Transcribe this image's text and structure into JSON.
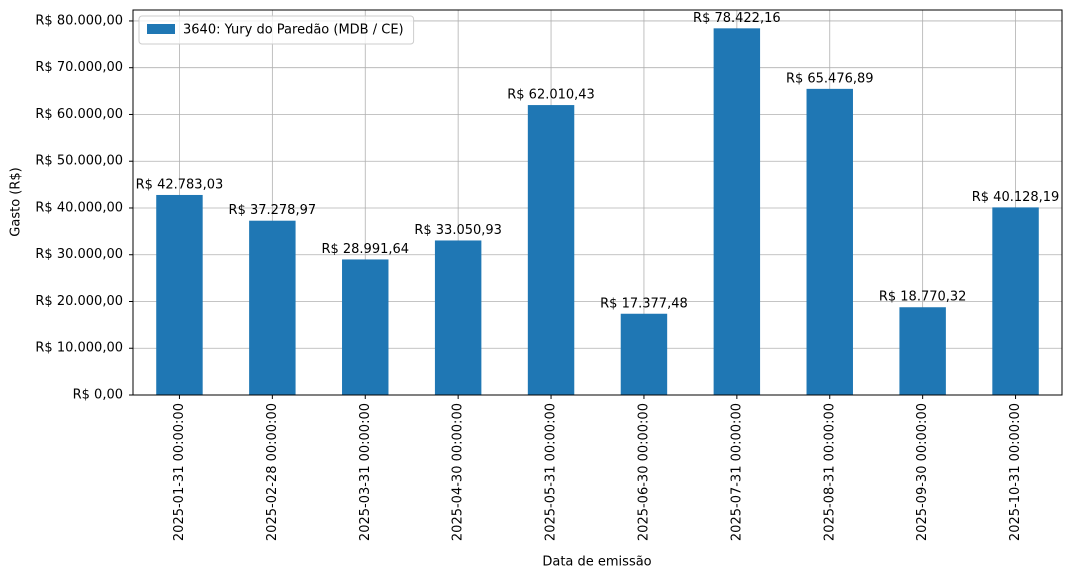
{
  "chart_data": {
    "type": "bar",
    "categories": [
      "2025-01-31 00:00:00",
      "2025-02-28 00:00:00",
      "2025-03-31 00:00:00",
      "2025-04-30 00:00:00",
      "2025-05-31 00:00:00",
      "2025-06-30 00:00:00",
      "2025-07-31 00:00:00",
      "2025-08-31 00:00:00",
      "2025-09-30 00:00:00",
      "2025-10-31 00:00:00"
    ],
    "series": [
      {
        "name": "3640: Yury do Paredão (MDB / CE)",
        "color": "#1f77b4",
        "values": [
          42783.03,
          37278.97,
          28991.64,
          33050.93,
          62010.43,
          17377.48,
          78422.16,
          65476.89,
          18770.32,
          40128.19
        ],
        "value_labels": [
          "R$ 42.783,03",
          "R$ 37.278,97",
          "R$ 28.991,64",
          "R$ 33.050,93",
          "R$ 62.010,43",
          "R$ 17.377,48",
          "R$ 78.422,16",
          "R$ 65.476,89",
          "R$ 18.770,32",
          "R$ 40.128,19"
        ]
      }
    ],
    "x_label": "Data de emissão",
    "y_label": "Gasto (R$)",
    "ylim": [
      0,
      82343.27
    ],
    "yticks": [
      {
        "value": 0,
        "label": "R$ 0,00"
      },
      {
        "value": 10000,
        "label": "R$ 10.000,00"
      },
      {
        "value": 20000,
        "label": "R$ 20.000,00"
      },
      {
        "value": 30000,
        "label": "R$ 30.000,00"
      },
      {
        "value": 40000,
        "label": "R$ 40.000,00"
      },
      {
        "value": 50000,
        "label": "R$ 50.000,00"
      },
      {
        "value": 60000,
        "label": "R$ 60.000,00"
      },
      {
        "value": 70000,
        "label": "R$ 70.000,00"
      },
      {
        "value": 80000,
        "label": "R$ 80.000,00"
      }
    ],
    "grid": true,
    "legend_position": "upper-left"
  }
}
